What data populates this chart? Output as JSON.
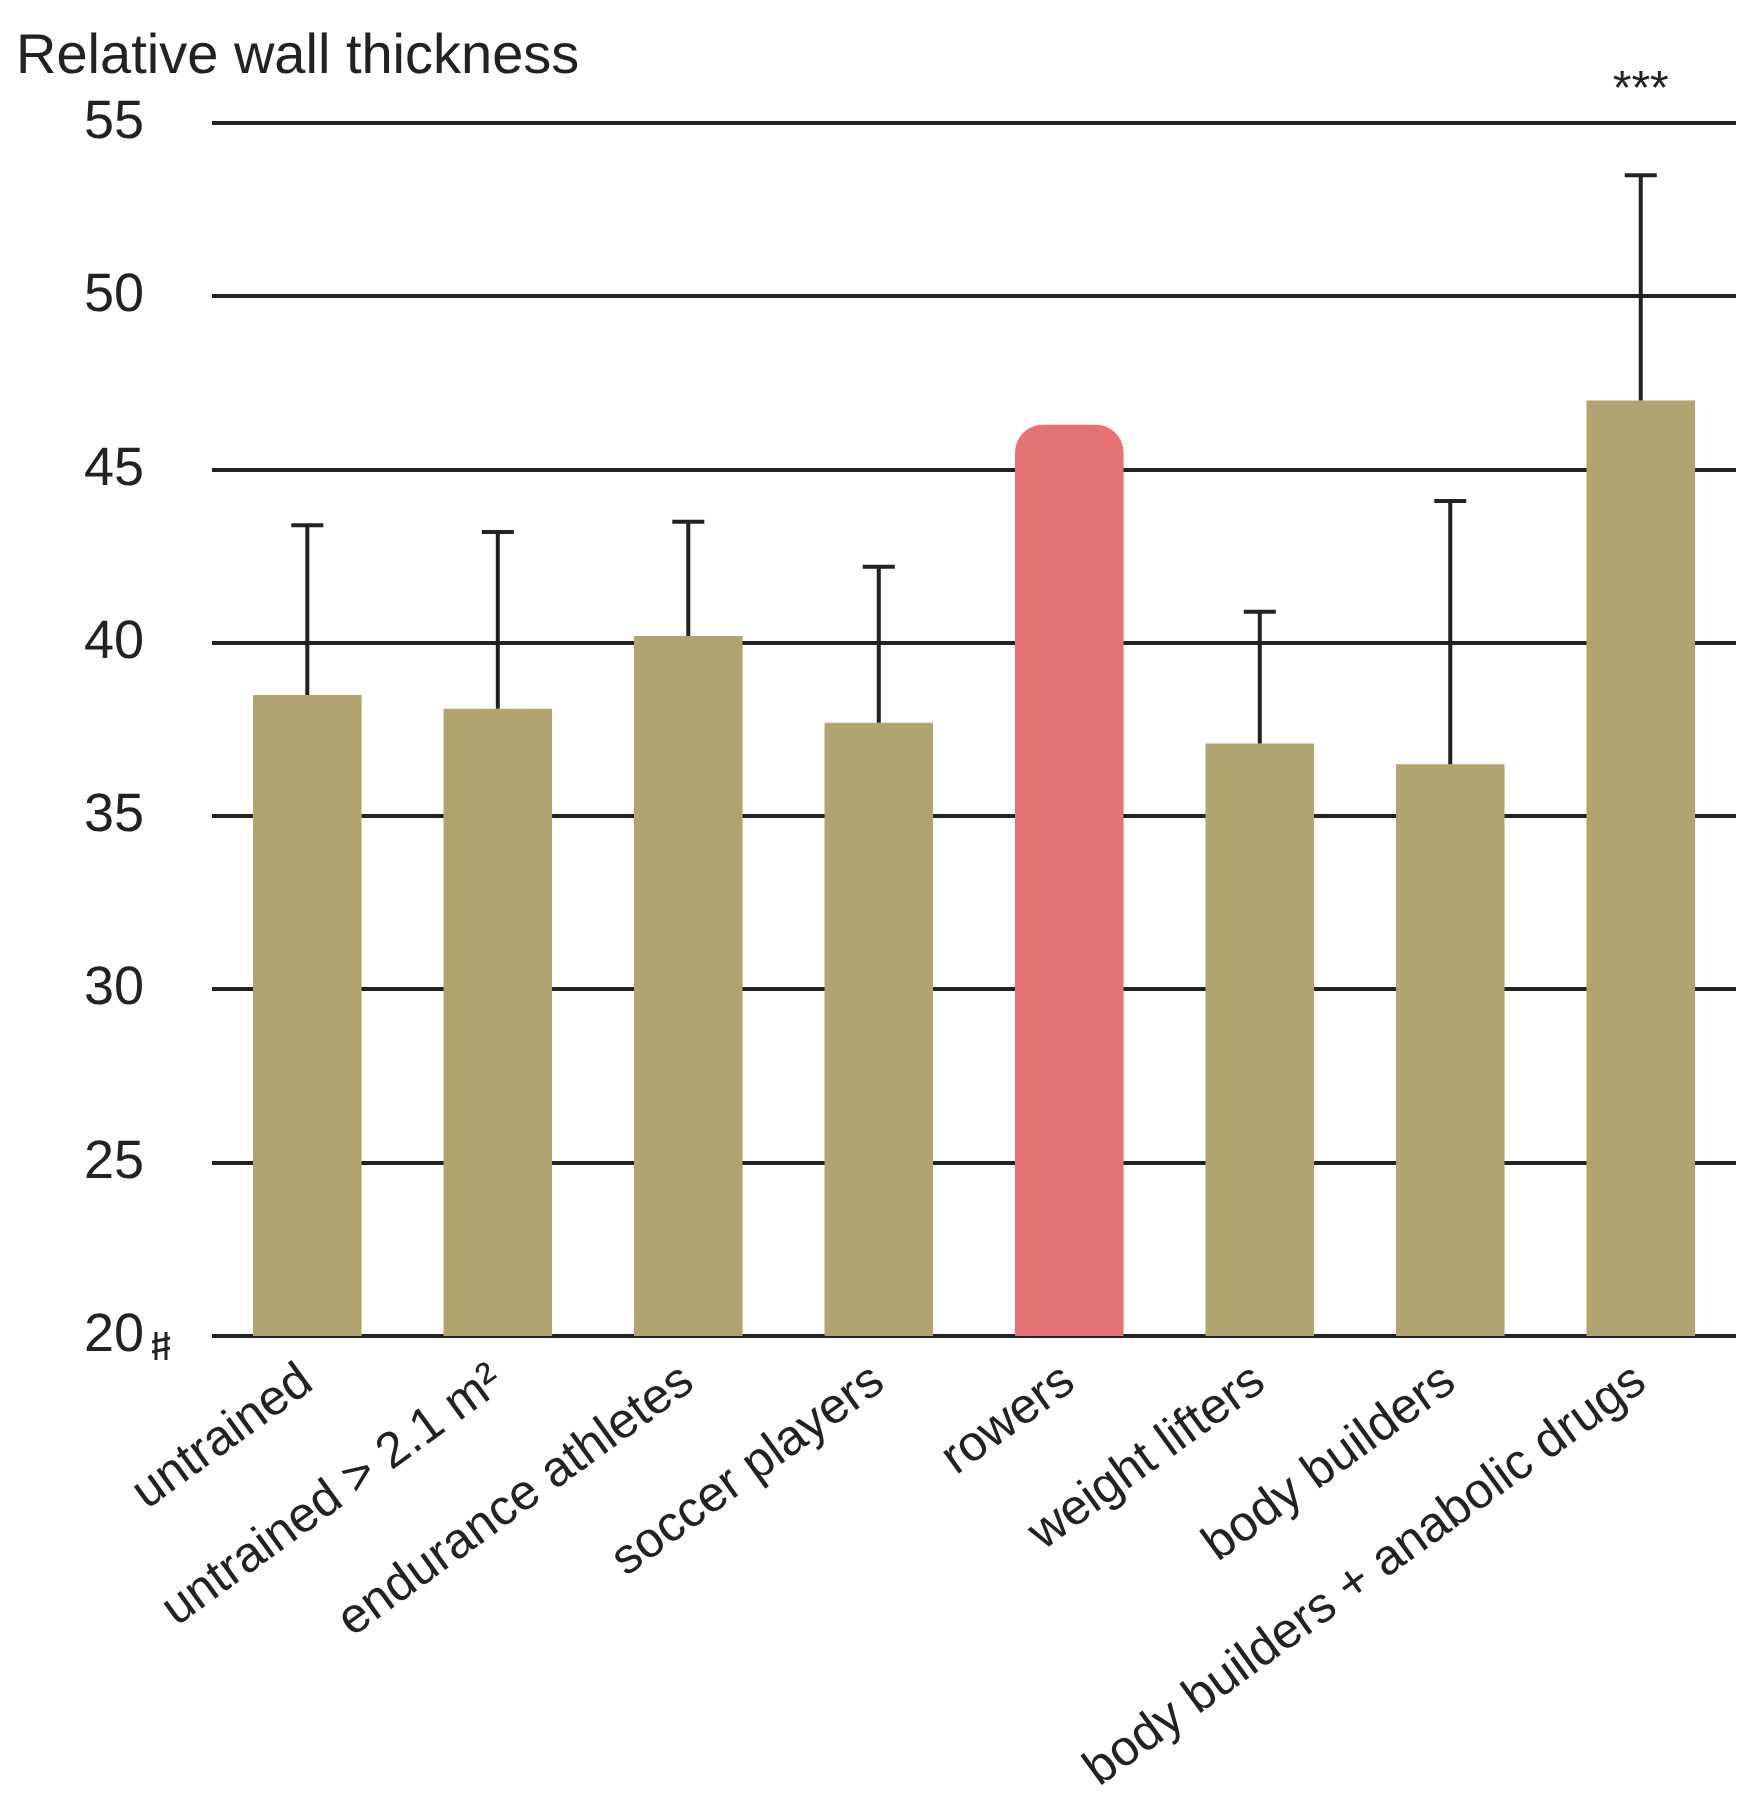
{
  "chart_data": {
    "type": "bar",
    "ylabel": "Relative wall thickness",
    "categories": [
      "untrained",
      "untrained > 2.1 m²",
      "endurance athletes",
      "soccer players",
      "rowers",
      "weight lifters",
      "body builders",
      "body builders + anabolic drugs"
    ],
    "values": [
      38.5,
      38.1,
      40.2,
      37.7,
      46.3,
      37.1,
      36.5,
      47.0
    ],
    "colors": [
      "#b0a470",
      "#b0a470",
      "#b0a470",
      "#b0a470",
      "#e57373",
      "#b0a470",
      "#b0a470",
      "#b0a470"
    ],
    "errors": [
      [
        38.5,
        43.4
      ],
      [
        38.1,
        43.2
      ],
      [
        40.2,
        43.5
      ],
      [
        37.7,
        42.2
      ],
      null,
      [
        37.1,
        40.9
      ],
      [
        36.5,
        44.1
      ],
      [
        47.0,
        53.5
      ]
    ],
    "annotations": [
      "***"
    ],
    "ylim": [
      20,
      55
    ],
    "yticks": [
      20,
      25,
      30,
      35,
      40,
      45,
      50,
      55
    ],
    "grid": "y"
  }
}
